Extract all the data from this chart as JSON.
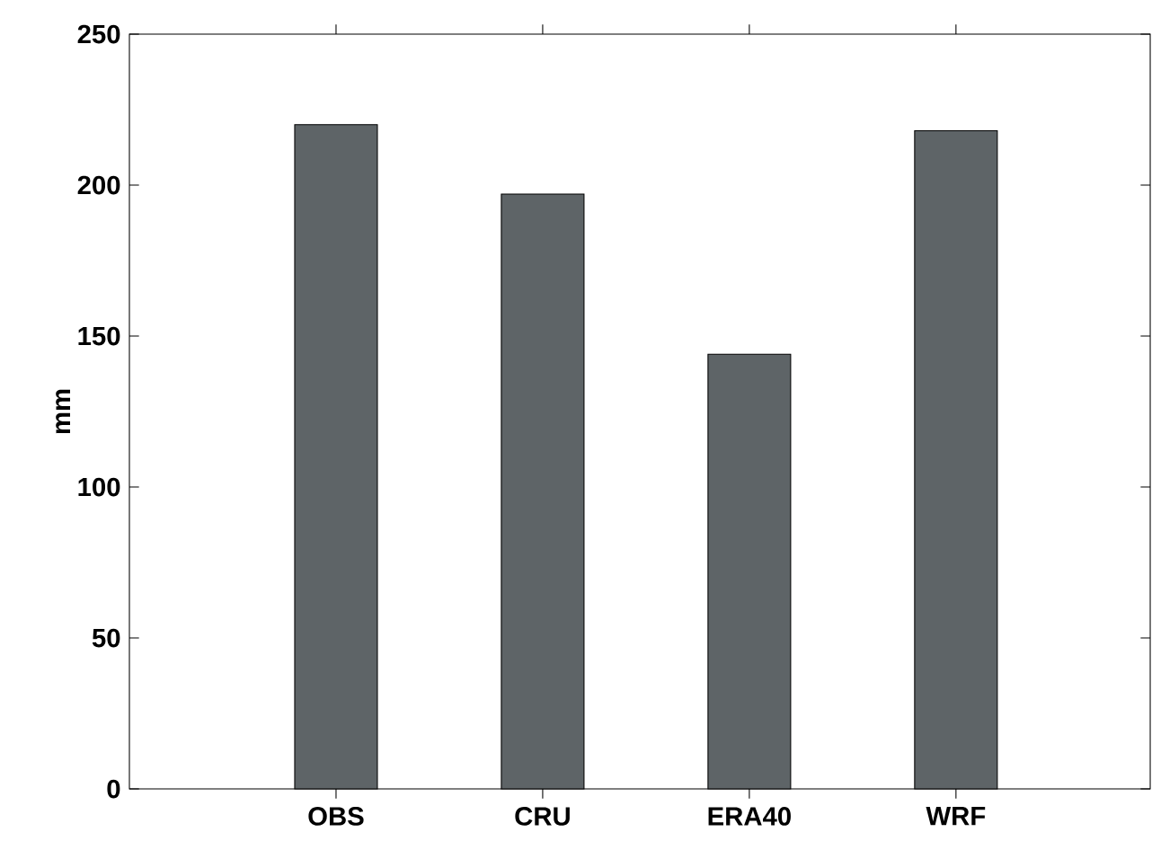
{
  "chart_data": {
    "type": "bar",
    "ylabel": "mm",
    "categories": [
      "OBS",
      "CRU",
      "ERA40",
      "WRF"
    ],
    "values": [
      220,
      197,
      144,
      218
    ],
    "color": "#5e6467",
    "ylim": [
      0,
      250
    ],
    "yticks": [
      0,
      50,
      100,
      150,
      200,
      250
    ]
  }
}
